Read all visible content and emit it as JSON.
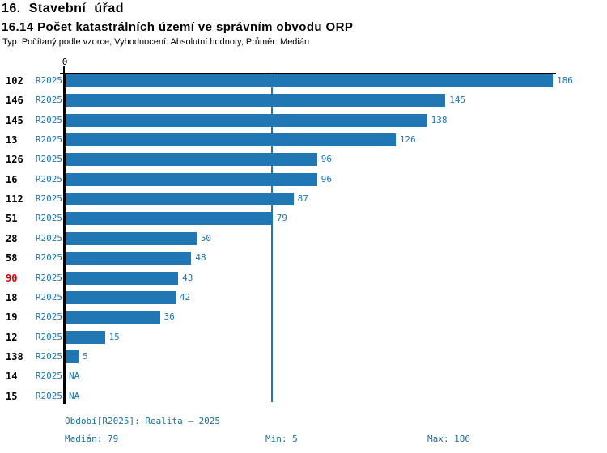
{
  "header": {
    "line1": "16. Stavební úřad",
    "line2": "16.14 Počet katastrálních území ve správním obvodu ORP",
    "meta": "Typ: Počítaný podle vzorce, Vyhodnocení: Absolutní hodnoty, Průměr: Medián"
  },
  "axis": {
    "zero": "0"
  },
  "period_label": "R2025",
  "na_label": "NA",
  "footer": {
    "period": "Období[R2025]: Realita – 2025",
    "median": "Medián: 79",
    "min": "Min: 5",
    "max": "Max: 186"
  },
  "colors": {
    "bar": "#2077b4",
    "blue_text": "#2077b4",
    "footer_text": "#19719e",
    "highlight_red": "#e00000",
    "axis": "#000000"
  },
  "chart_data": {
    "type": "bar",
    "orientation": "horizontal",
    "title": "16. Stavební úřad",
    "subtitle": "16.14 Počet katastrálních území ve správním obvodu ORP",
    "meta": "Typ: Počítaný podle vzorce, Vyhodnocení: Absolutní hodnoty, Průměr: Medián",
    "categories": [
      "102",
      "146",
      "145",
      "13",
      "126",
      "16",
      "112",
      "51",
      "28",
      "58",
      "90",
      "18",
      "19",
      "12",
      "138",
      "14",
      "15"
    ],
    "series": [
      {
        "name": "R2025",
        "values": [
          186,
          145,
          138,
          126,
          96,
          96,
          87,
          79,
          50,
          48,
          43,
          42,
          36,
          15,
          5,
          null,
          null
        ]
      }
    ],
    "na_categories": [
      "14",
      "15"
    ],
    "highlighted_category": "90",
    "xlim": [
      0,
      186
    ],
    "xlabel": "",
    "ylabel": "",
    "median": 79,
    "min": 5,
    "max": 186,
    "median_line_value": 79,
    "grid": false,
    "legend_position": "none"
  }
}
